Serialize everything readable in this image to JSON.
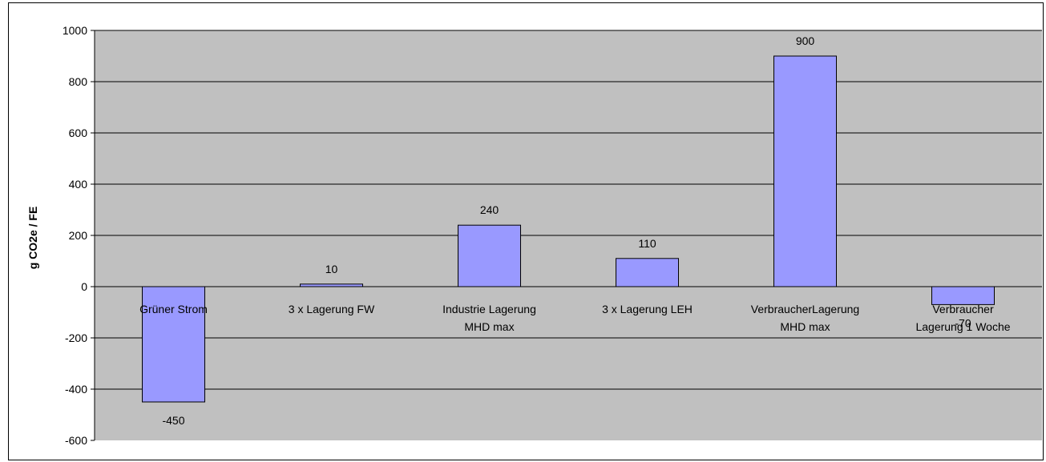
{
  "chart_data": {
    "type": "bar",
    "title": "",
    "xlabel": "",
    "ylabel": "g CO2e / FE",
    "ylim": [
      -600,
      1000
    ],
    "yticks": [
      -600,
      -400,
      -200,
      0,
      200,
      400,
      600,
      800,
      1000
    ],
    "grid": true,
    "legend": "none",
    "categories": [
      [
        "Grüner Strom"
      ],
      [
        "3 x Lagerung FW"
      ],
      [
        "Industrie Lagerung",
        "MHD max"
      ],
      [
        "3 x Lagerung LEH"
      ],
      [
        "VerbraucherLagerung",
        "MHD max"
      ],
      [
        "Verbraucher",
        "Lagerung 1 Woche"
      ]
    ],
    "values": [
      -450,
      10,
      240,
      110,
      900,
      -70
    ],
    "data_labels": [
      "-450",
      "10",
      "240",
      "110",
      "900",
      "-70"
    ],
    "colors": {
      "bar_fill": "#9999ff",
      "bar_stroke": "#000000",
      "plot_bg": "#c0c0c0",
      "grid": "#000000"
    }
  }
}
